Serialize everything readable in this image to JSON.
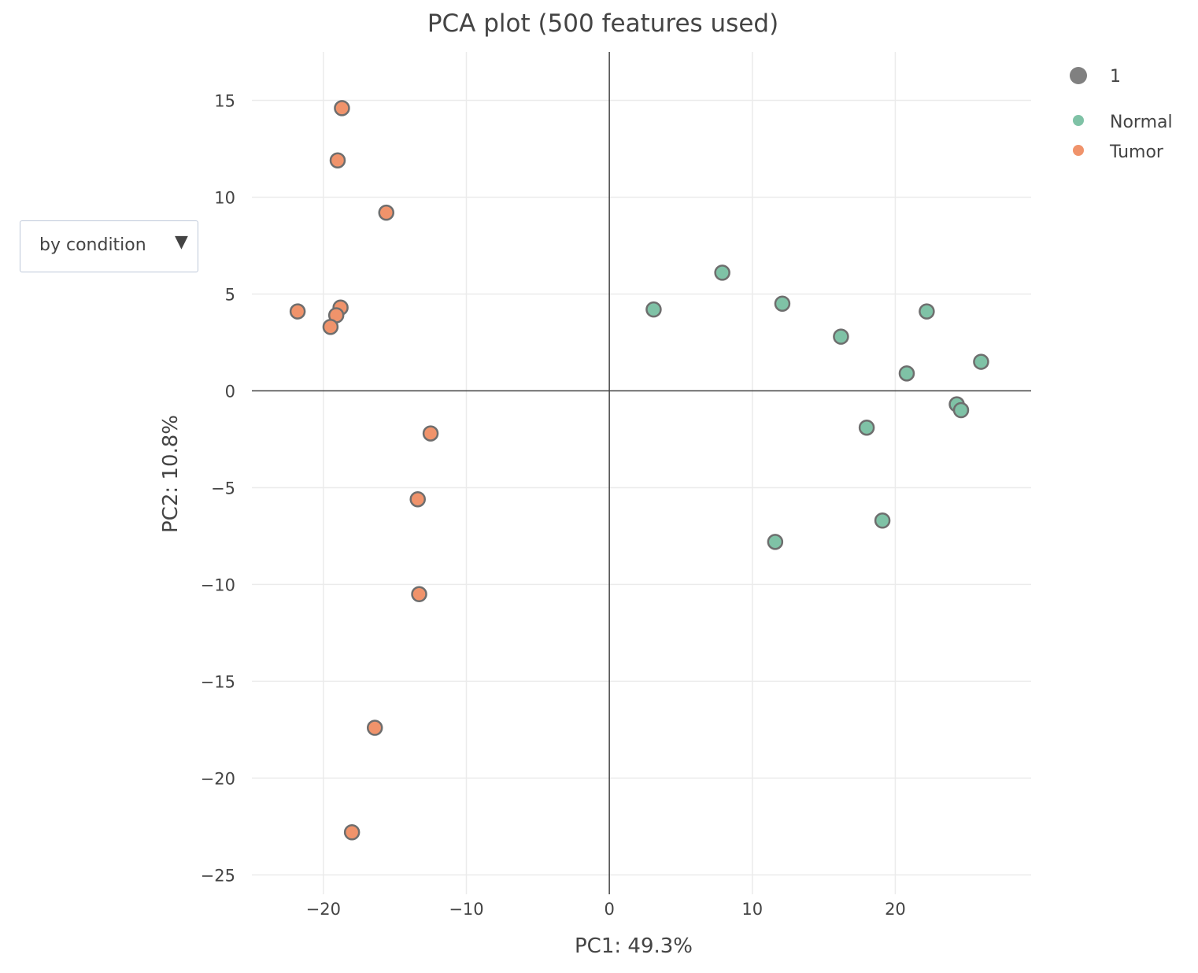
{
  "chart_data": {
    "type": "scatter",
    "title": "PCA plot (500 features used)",
    "xlabel": "PC1: 49.3%",
    "ylabel": "PC2: 10.8%",
    "xlim": [
      -25,
      29.5
    ],
    "ylim": [
      -26,
      17.5
    ],
    "xticks": [
      -20,
      -10,
      0,
      10,
      20
    ],
    "yticks": [
      15,
      10,
      5,
      0,
      -5,
      -10,
      -15,
      -20,
      -25
    ],
    "grid": true,
    "zero_lines": true,
    "legend_position": "top-right",
    "size_legend": {
      "label": "1",
      "color": "#808080"
    },
    "series": [
      {
        "name": "Normal",
        "color": "#7fc2a6",
        "points": [
          [
            3.1,
            4.2
          ],
          [
            7.9,
            6.1
          ],
          [
            12.1,
            4.5
          ],
          [
            16.2,
            2.8
          ],
          [
            22.2,
            4.1
          ],
          [
            20.8,
            0.9
          ],
          [
            26.0,
            1.5
          ],
          [
            24.3,
            -0.7
          ],
          [
            24.6,
            -1.0
          ],
          [
            18.0,
            -1.9
          ],
          [
            19.1,
            -6.7
          ],
          [
            11.6,
            -7.8
          ]
        ]
      },
      {
        "name": "Tumor",
        "color": "#f0936b",
        "points": [
          [
            -18.7,
            14.6
          ],
          [
            -19.0,
            11.9
          ],
          [
            -15.6,
            9.2
          ],
          [
            -21.8,
            4.1
          ],
          [
            -18.8,
            4.3
          ],
          [
            -19.1,
            3.9
          ],
          [
            -19.5,
            3.3
          ],
          [
            -12.5,
            -2.2
          ],
          [
            -13.4,
            -5.6
          ],
          [
            -13.3,
            -10.5
          ],
          [
            -16.4,
            -17.4
          ],
          [
            -18.0,
            -22.8
          ]
        ]
      }
    ]
  },
  "dropdown": {
    "label": "by condition",
    "arrow": "▼"
  }
}
